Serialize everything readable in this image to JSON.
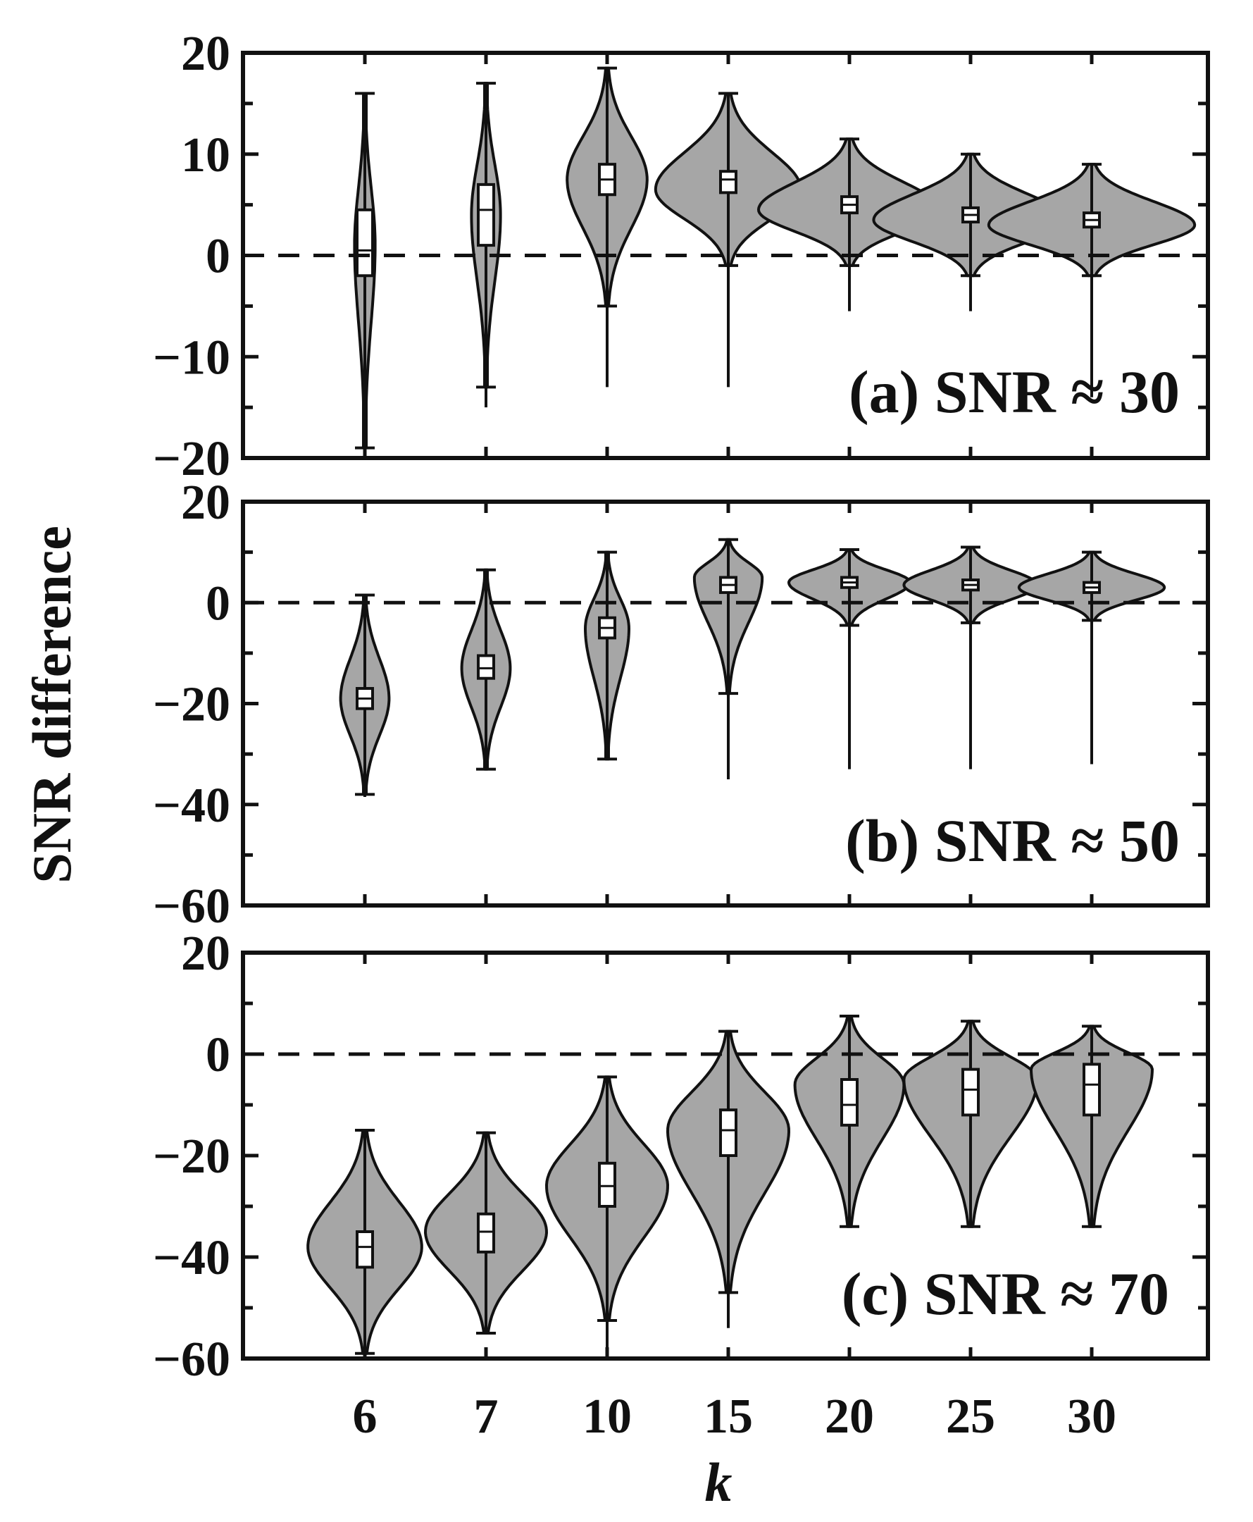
{
  "chart_data": {
    "type": "violin",
    "ylabel": "SNR difference",
    "xlabel": "k",
    "categories": [
      "6",
      "7",
      "10",
      "15",
      "20",
      "25",
      "30"
    ],
    "fill_color": "#a6a6a6",
    "line_color": "#111111",
    "panels": [
      {
        "label": "(a) SNR ≈ 30",
        "ylim": [
          -20,
          20
        ],
        "yticks": [
          20,
          10,
          0,
          -10,
          -20
        ],
        "ytick_labels": [
          "20",
          "10",
          "0",
          "−10",
          "−20"
        ],
        "reference_line": 0,
        "violins": [
          {
            "k": "6",
            "center": 1,
            "halfwidth": 0.085,
            "median": 0.5,
            "q1": -2,
            "q3": 4.5,
            "whisker_low": -19,
            "whisker_high": 16,
            "min": -19,
            "max": 16
          },
          {
            "k": "7",
            "center": 4,
            "halfwidth": 0.12,
            "median": 4.5,
            "q1": 1,
            "q3": 7,
            "whisker_low": -13,
            "whisker_high": 17,
            "min": -15,
            "max": 17
          },
          {
            "k": "10",
            "center": 7.5,
            "halfwidth": 0.33,
            "median": 7.5,
            "q1": 6,
            "q3": 9,
            "whisker_low": -5,
            "whisker_high": 18.5,
            "min": -13,
            "max": 18.5
          },
          {
            "k": "15",
            "center": 6.5,
            "halfwidth": 0.6,
            "median": 7.5,
            "q1": 6.2,
            "q3": 8.3,
            "whisker_low": -1,
            "whisker_high": 16,
            "min": -13,
            "max": 16
          },
          {
            "k": "20",
            "center": 4.5,
            "halfwidth": 0.75,
            "median": 5,
            "q1": 4.2,
            "q3": 5.8,
            "whisker_low": -1,
            "whisker_high": 11.5,
            "min": -5.5,
            "max": 11.5
          },
          {
            "k": "25",
            "center": 3.5,
            "halfwidth": 0.8,
            "median": 4,
            "q1": 3.3,
            "q3": 4.7,
            "whisker_low": -2,
            "whisker_high": 10,
            "min": -5.5,
            "max": 10
          },
          {
            "k": "30",
            "center": 3,
            "halfwidth": 0.85,
            "median": 3.5,
            "q1": 2.8,
            "q3": 4.2,
            "whisker_low": -2,
            "whisker_high": 9,
            "min": -14,
            "max": 9
          }
        ]
      },
      {
        "label": "(b) SNR ≈ 50",
        "ylim": [
          -60,
          20
        ],
        "yticks": [
          20,
          0,
          -20,
          -40,
          -60
        ],
        "ytick_labels": [
          "20",
          "0",
          "−20",
          "−40",
          "−60"
        ],
        "reference_line": 0,
        "violins": [
          {
            "k": "6",
            "center": -19,
            "halfwidth": 0.2,
            "median": -19,
            "q1": -21,
            "q3": -17,
            "whisker_low": -38,
            "whisker_high": 1.5,
            "min": -38.5,
            "max": 1.5
          },
          {
            "k": "7",
            "center": -13,
            "halfwidth": 0.2,
            "median": -13,
            "q1": -15,
            "q3": -10.5,
            "whisker_low": -33,
            "whisker_high": 6.5,
            "min": -33,
            "max": 6.5
          },
          {
            "k": "10",
            "center": -5,
            "halfwidth": 0.18,
            "median": -5,
            "q1": -7,
            "q3": -3,
            "whisker_low": -31,
            "whisker_high": 10,
            "min": -31,
            "max": 10
          },
          {
            "k": "15",
            "center": 5,
            "halfwidth": 0.28,
            "median": 3.5,
            "q1": 2,
            "q3": 5,
            "whisker_low": -18,
            "whisker_high": 12.5,
            "min": -35,
            "max": 12.5
          },
          {
            "k": "20",
            "center": 4,
            "halfwidth": 0.5,
            "median": 4,
            "q1": 3,
            "q3": 5,
            "whisker_low": -4.5,
            "whisker_high": 10.5,
            "min": -33,
            "max": 10.5
          },
          {
            "k": "25",
            "center": 3.5,
            "halfwidth": 0.55,
            "median": 3.5,
            "q1": 2.5,
            "q3": 4.5,
            "whisker_low": -4,
            "whisker_high": 11,
            "min": -33,
            "max": 11
          },
          {
            "k": "30",
            "center": 3,
            "halfwidth": 0.6,
            "median": 3,
            "q1": 2,
            "q3": 4,
            "whisker_low": -3.5,
            "whisker_high": 10,
            "min": -32,
            "max": 10
          }
        ]
      },
      {
        "label": "(c) SNR ≈ 70",
        "ylim": [
          -60,
          20
        ],
        "yticks": [
          20,
          0,
          -20,
          -40,
          -60
        ],
        "ytick_labels": [
          "20",
          "0",
          "−20",
          "−40",
          "−60"
        ],
        "reference_line": 0,
        "violins": [
          {
            "k": "6",
            "center": -38,
            "halfwidth": 0.47,
            "median": -38,
            "q1": -42,
            "q3": -35,
            "whisker_low": -59,
            "whisker_high": -15,
            "min": -59,
            "max": -15
          },
          {
            "k": "7",
            "center": -35,
            "halfwidth": 0.5,
            "median": -35,
            "q1": -39,
            "q3": -31.5,
            "whisker_low": -55,
            "whisker_high": -15.5,
            "min": -55,
            "max": -15.5
          },
          {
            "k": "10",
            "center": -26,
            "halfwidth": 0.5,
            "median": -26,
            "q1": -30,
            "q3": -21.5,
            "whisker_low": -52.5,
            "whisker_high": -4.5,
            "min": -58,
            "max": -4.5
          },
          {
            "k": "15",
            "center": -15,
            "halfwidth": 0.5,
            "median": -15,
            "q1": -20,
            "q3": -11,
            "whisker_low": -47,
            "whisker_high": 4.5,
            "min": -54,
            "max": 4.5
          },
          {
            "k": "20",
            "center": -6,
            "halfwidth": 0.45,
            "median": -10,
            "q1": -14,
            "q3": -5,
            "whisker_low": -34,
            "whisker_high": 7.5,
            "min": -34,
            "max": 7.5
          },
          {
            "k": "25",
            "center": -5,
            "halfwidth": 0.55,
            "median": -7,
            "q1": -12,
            "q3": -3,
            "whisker_low": -34,
            "whisker_high": 6.5,
            "min": -34,
            "max": 6.5
          },
          {
            "k": "30",
            "center": -3,
            "halfwidth": 0.5,
            "median": -6,
            "q1": -12,
            "q3": -2,
            "whisker_low": -34,
            "whisker_high": 5.5,
            "min": -34,
            "max": 5.5
          }
        ]
      }
    ]
  }
}
